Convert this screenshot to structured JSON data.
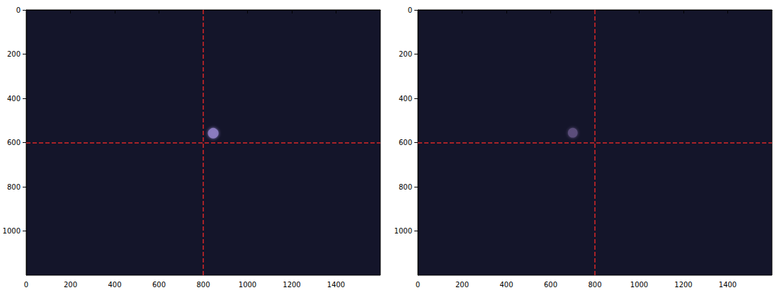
{
  "chart_data": [
    {
      "type": "image",
      "color": "#14152a",
      "xlim": [
        0,
        1600
      ],
      "xticks": [
        0,
        200,
        400,
        600,
        800,
        1000,
        1200,
        1400
      ],
      "ylim": [
        0,
        1200
      ],
      "yticks": [
        0,
        200,
        400,
        600,
        800,
        1000
      ],
      "spot": {
        "x": 845,
        "y": 558,
        "size": 48,
        "color": "#8c7cc0"
      },
      "crosshair": {
        "x": 800,
        "y": 600,
        "color": "#d62728",
        "line_style": "dashed"
      }
    },
    {
      "type": "image",
      "color": "#14152a",
      "xlim": [
        0,
        1600
      ],
      "xticks": [
        0,
        200,
        400,
        600,
        800,
        1000,
        1200,
        1400
      ],
      "ylim": [
        0,
        1200
      ],
      "yticks": [
        0,
        200,
        400,
        600,
        800,
        1000
      ],
      "spot": {
        "x": 700,
        "y": 556,
        "size": 44,
        "color": "#5c4e7c"
      },
      "crosshair": {
        "x": 800,
        "y": 600,
        "color": "#d62728",
        "line_style": "dashed"
      }
    }
  ]
}
